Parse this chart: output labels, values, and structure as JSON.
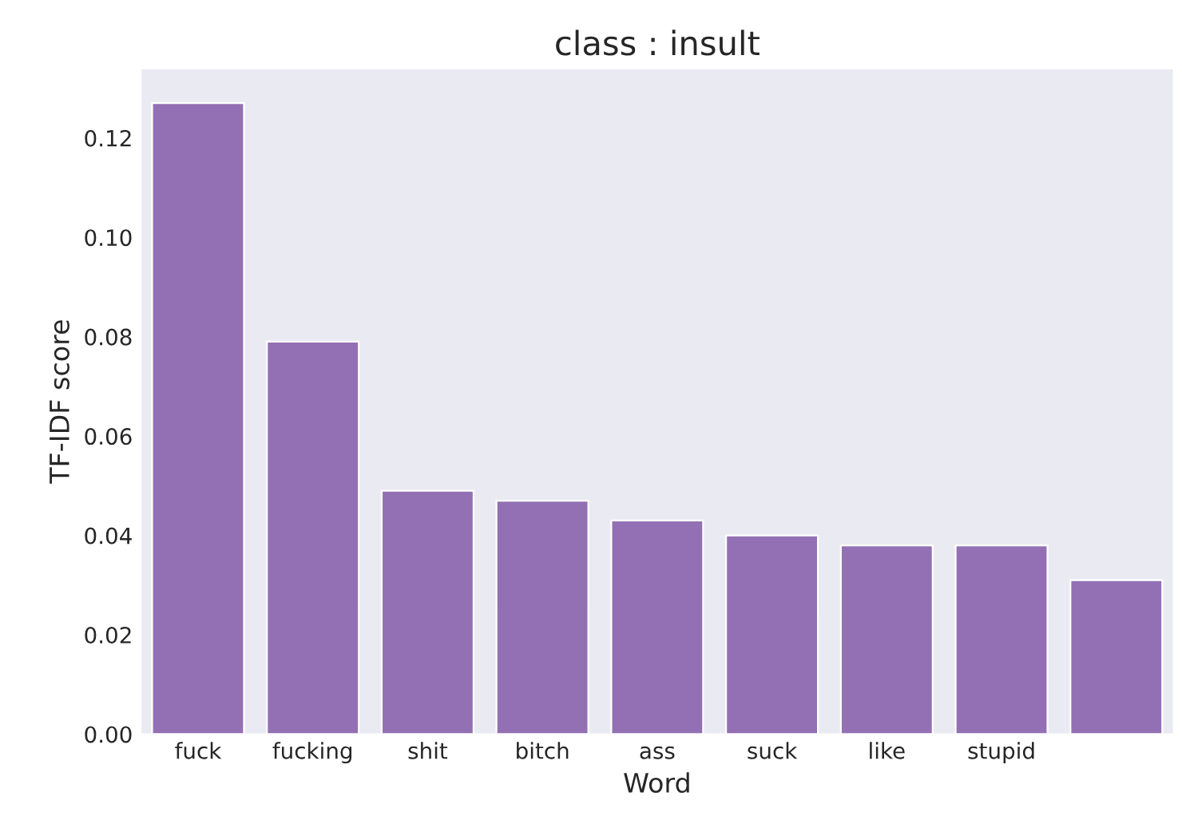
{
  "chart_data": {
    "type": "bar",
    "title": "class : insult",
    "xlabel": "Word",
    "ylabel": "TF-IDF score",
    "categories": [
      "fuck",
      "fucking",
      "shit",
      "bitch",
      "ass",
      "suck",
      "like",
      "stupid",
      null
    ],
    "values": [
      0.127,
      0.079,
      0.049,
      0.047,
      0.043,
      0.04,
      0.038,
      0.038,
      0.031
    ],
    "color": "#9370b3",
    "ylim": [
      0,
      0.134
    ],
    "yticks": [
      {
        "value": 0,
        "label": "0.00"
      },
      {
        "value": 0.02,
        "label": "0.02"
      },
      {
        "value": 0.04,
        "label": "0.04"
      },
      {
        "value": 0.06,
        "label": "0.06"
      },
      {
        "value": 0.08,
        "label": "0.08"
      },
      {
        "value": 0.1,
        "label": "0.10"
      },
      {
        "value": 0.12,
        "label": "0.12"
      }
    ],
    "grid": false
  }
}
